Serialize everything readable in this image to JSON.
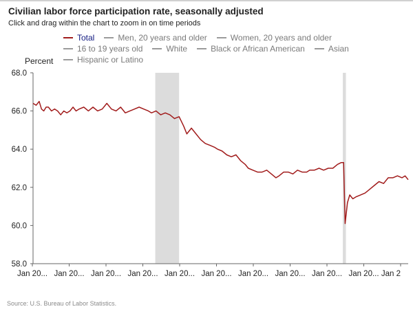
{
  "header": {
    "title": "Civilian labor force participation rate, seasonally adjusted",
    "subtitle": "Click and drag within the chart to zoom in on time periods"
  },
  "legend": [
    [
      "Total",
      "Men, 20 years and older",
      "Women, 20 years and older"
    ],
    [
      "16 to 19 years old",
      "White",
      "Black or African American",
      "Asian"
    ],
    [
      "Hispanic or Latino"
    ]
  ],
  "footer": {
    "source": "Source: U.S. Bureau of Labor Statistics."
  },
  "chart_data": {
    "type": "line",
    "title": "Civilian labor force participation rate, seasonally adjusted",
    "xlabel": "",
    "ylabel": "Percent",
    "ylim": [
      58.0,
      68.0
    ],
    "yticks": [
      "58.0",
      "60.0",
      "62.0",
      "64.0",
      "66.0",
      "68.0"
    ],
    "xticks": [
      "Jan 20...",
      "Jan 20...",
      "Jan 20...",
      "Jan 20...",
      "Jan 20...",
      "Jan 20...",
      "Jan 20...",
      "Jan 20...",
      "Jan 20...",
      "Jan 20...",
      "Jan 2"
    ],
    "x_start": 2000,
    "x_end": 2024.4,
    "colors": {
      "line": "#a11b1b",
      "recession": "#dcdcdc",
      "axis": "#666666",
      "grid": "#e6e6e6"
    },
    "recessions": [
      [
        2007.95,
        2009.5
      ],
      [
        2020.15,
        2020.35
      ]
    ],
    "series": [
      {
        "name": "Total",
        "x": [
          2000.0,
          2000.2,
          2000.4,
          2000.55,
          2000.7,
          2000.85,
          2001.0,
          2001.2,
          2001.4,
          2001.6,
          2001.8,
          2002.0,
          2002.2,
          2002.4,
          2002.6,
          2002.8,
          2003.0,
          2003.3,
          2003.6,
          2003.9,
          2004.2,
          2004.5,
          2004.8,
          2005.1,
          2005.4,
          2005.7,
          2006.0,
          2006.3,
          2006.6,
          2006.9,
          2007.2,
          2007.5,
          2007.7,
          2008.0,
          2008.3,
          2008.6,
          2008.9,
          2009.2,
          2009.5,
          2009.8,
          2010.0,
          2010.3,
          2010.6,
          2010.9,
          2011.2,
          2011.5,
          2011.8,
          2012.0,
          2012.3,
          2012.6,
          2012.9,
          2013.2,
          2013.5,
          2013.8,
          2014.0,
          2014.3,
          2014.6,
          2014.9,
          2015.2,
          2015.5,
          2015.8,
          2016.0,
          2016.3,
          2016.6,
          2016.9,
          2017.2,
          2017.5,
          2017.8,
          2018.0,
          2018.3,
          2018.6,
          2018.9,
          2019.2,
          2019.5,
          2019.8,
          2020.05,
          2020.2,
          2020.3,
          2020.45,
          2020.6,
          2020.8,
          2021.0,
          2021.3,
          2021.6,
          2021.9,
          2022.2,
          2022.5,
          2022.8,
          2023.1,
          2023.4,
          2023.7,
          2024.0,
          2024.2,
          2024.4
        ],
        "values": [
          66.4,
          66.3,
          66.5,
          66.1,
          66.0,
          66.2,
          66.2,
          66.0,
          66.1,
          66.0,
          65.8,
          66.0,
          65.9,
          66.0,
          66.2,
          66.0,
          66.1,
          66.2,
          66.0,
          66.2,
          66.0,
          66.1,
          66.4,
          66.1,
          66.0,
          66.2,
          65.9,
          66.0,
          66.1,
          66.2,
          66.1,
          66.0,
          65.9,
          66.0,
          65.8,
          65.9,
          65.8,
          65.6,
          65.7,
          65.2,
          64.8,
          65.1,
          64.8,
          64.5,
          64.3,
          64.2,
          64.1,
          64.0,
          63.9,
          63.7,
          63.6,
          63.7,
          63.4,
          63.2,
          63.0,
          62.9,
          62.8,
          62.8,
          62.9,
          62.7,
          62.5,
          62.6,
          62.8,
          62.8,
          62.7,
          62.9,
          62.8,
          62.8,
          62.9,
          62.9,
          63.0,
          62.9,
          63.0,
          63.0,
          63.2,
          63.3,
          63.3,
          60.1,
          61.2,
          61.6,
          61.4,
          61.5,
          61.6,
          61.7,
          61.9,
          62.1,
          62.3,
          62.2,
          62.5,
          62.5,
          62.6,
          62.5,
          62.6,
          62.4
        ]
      }
    ]
  }
}
